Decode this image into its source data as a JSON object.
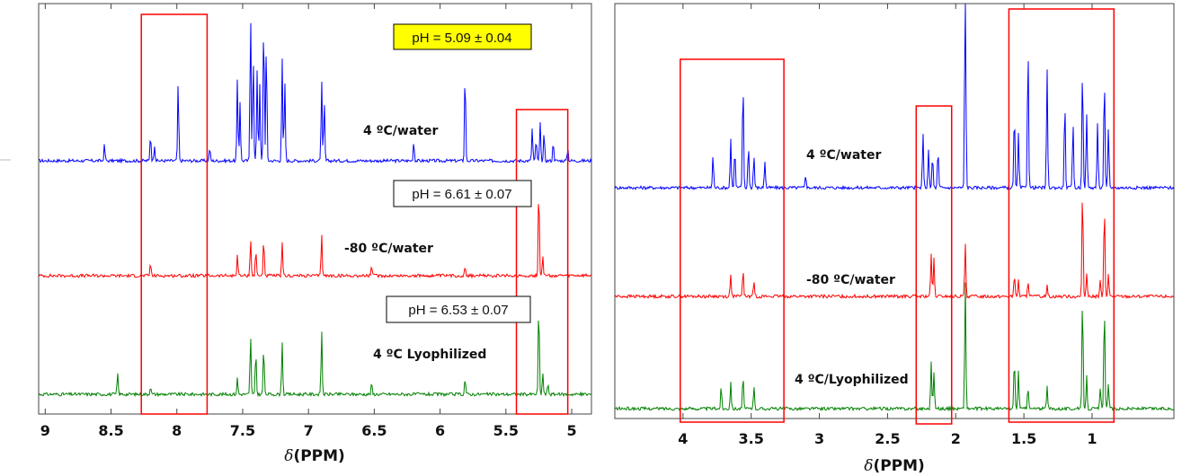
{
  "chart_data": [
    {
      "type": "line",
      "xlabel_symbol": "δ",
      "xlabel_unit": "(PPM)",
      "xlim": [
        9.05,
        4.85
      ],
      "x_reversed": true,
      "xticks": [
        9,
        8.5,
        8,
        7.5,
        7,
        6.5,
        6,
        5.5,
        5
      ],
      "tick_labels": [
        "9",
        "8.5",
        "8",
        "7.5",
        "7",
        "6.5",
        "6",
        "5.5",
        "5"
      ],
      "series": [
        {
          "name": "4 ºC/water",
          "color": "#0000ff",
          "peaks": [
            [
              8.55,
              0.15
            ],
            [
              8.2,
              0.25
            ],
            [
              8.17,
              0.15
            ],
            [
              7.99,
              0.72
            ],
            [
              7.75,
              0.12
            ],
            [
              7.54,
              0.75
            ],
            [
              7.52,
              0.55
            ],
            [
              7.44,
              1.4
            ],
            [
              7.42,
              1.0
            ],
            [
              7.39,
              0.85
            ],
            [
              7.37,
              0.7
            ],
            [
              7.34,
              1.35
            ],
            [
              7.32,
              1.1
            ],
            [
              7.2,
              0.95
            ],
            [
              7.18,
              0.75
            ],
            [
              6.9,
              0.75
            ],
            [
              6.88,
              0.55
            ],
            [
              6.2,
              0.18
            ],
            [
              5.81,
              0.85
            ],
            [
              5.3,
              0.3
            ],
            [
              5.27,
              0.2
            ],
            [
              5.24,
              0.35
            ],
            [
              5.21,
              0.25
            ],
            [
              5.14,
              0.18
            ],
            [
              5.03,
              0.12
            ]
          ]
        },
        {
          "name": "-80 ºC/water",
          "color": "#ff0000",
          "peaks": [
            [
              8.2,
              0.12
            ],
            [
              7.54,
              0.2
            ],
            [
              7.44,
              0.35
            ],
            [
              7.4,
              0.25
            ],
            [
              7.34,
              0.35
            ],
            [
              7.2,
              0.3
            ],
            [
              6.9,
              0.4
            ],
            [
              6.52,
              0.1
            ],
            [
              5.81,
              0.1
            ],
            [
              5.25,
              0.85
            ],
            [
              5.22,
              0.2
            ]
          ]
        },
        {
          "name": "4 ºC Lyophilized",
          "color": "#008000",
          "peaks": [
            [
              8.45,
              0.2
            ],
            [
              8.2,
              0.08
            ],
            [
              7.54,
              0.15
            ],
            [
              7.44,
              0.55
            ],
            [
              7.4,
              0.4
            ],
            [
              7.34,
              0.45
            ],
            [
              7.2,
              0.5
            ],
            [
              6.9,
              0.6
            ],
            [
              6.52,
              0.1
            ],
            [
              5.81,
              0.15
            ],
            [
              5.25,
              0.85
            ],
            [
              5.22,
              0.2
            ],
            [
              5.18,
              0.1
            ]
          ]
        }
      ],
      "annotations": {
        "ph_labels": [
          "pH = 5.09 ± 0.04",
          "pH = 6.61 ± 0.07",
          "pH = 6.53 ±  0.07"
        ],
        "ph_highlight_color": "#ffff00",
        "highlight_region_color": "#ff0000",
        "highlight_regions_ppm": [
          [
            8.27,
            7.77
          ],
          [
            5.42,
            5.03
          ]
        ]
      },
      "grid": false
    },
    {
      "type": "line",
      "xlabel_symbol": "δ",
      "xlabel_unit": "(PPM)",
      "xlim": [
        4.5,
        0.4
      ],
      "x_reversed": true,
      "xticks": [
        4,
        3.5,
        3,
        2.5,
        2,
        1.5,
        1
      ],
      "tick_labels": [
        "4",
        "3.5",
        "3",
        "2.5",
        "2",
        "1.5",
        "1"
      ],
      "series": [
        {
          "name": "4 ºC/water",
          "color": "#0000ff",
          "peaks": [
            [
              3.78,
              0.3
            ],
            [
              3.65,
              0.45
            ],
            [
              3.62,
              0.35
            ],
            [
              3.56,
              1.0
            ],
            [
              3.52,
              0.4
            ],
            [
              3.48,
              0.3
            ],
            [
              3.4,
              0.25
            ],
            [
              3.1,
              0.12
            ],
            [
              2.24,
              0.5
            ],
            [
              2.2,
              0.35
            ],
            [
              2.17,
              0.3
            ],
            [
              2.13,
              0.35
            ],
            [
              1.93,
              2.5
            ],
            [
              1.57,
              0.7
            ],
            [
              1.54,
              0.5
            ],
            [
              1.47,
              1.35
            ],
            [
              1.33,
              1.1
            ],
            [
              1.2,
              0.8
            ],
            [
              1.14,
              0.6
            ],
            [
              1.07,
              1.15
            ],
            [
              1.04,
              0.7
            ],
            [
              0.96,
              0.6
            ],
            [
              0.91,
              1.05
            ],
            [
              0.88,
              0.55
            ]
          ]
        },
        {
          "name": "-80 ºC/water",
          "color": "#ff0000",
          "peaks": [
            [
              3.65,
              0.2
            ],
            [
              3.56,
              0.25
            ],
            [
              3.48,
              0.15
            ],
            [
              2.18,
              0.4
            ],
            [
              2.16,
              0.35
            ],
            [
              1.93,
              0.5
            ],
            [
              1.57,
              0.2
            ],
            [
              1.54,
              0.15
            ],
            [
              1.47,
              0.15
            ],
            [
              1.33,
              0.1
            ],
            [
              1.07,
              1.0
            ],
            [
              1.04,
              0.2
            ],
            [
              0.94,
              0.15
            ],
            [
              0.91,
              0.85
            ],
            [
              0.88,
              0.2
            ]
          ]
        },
        {
          "name": "4 ºC/Lyophilized",
          "color": "#008000",
          "peaks": [
            [
              3.72,
              0.2
            ],
            [
              3.65,
              0.25
            ],
            [
              3.56,
              0.3
            ],
            [
              3.48,
              0.2
            ],
            [
              2.18,
              0.45
            ],
            [
              2.16,
              0.35
            ],
            [
              1.93,
              1.2
            ],
            [
              1.57,
              0.45
            ],
            [
              1.54,
              0.35
            ],
            [
              1.47,
              0.2
            ],
            [
              1.33,
              0.2
            ],
            [
              1.07,
              1.05
            ],
            [
              1.04,
              0.3
            ],
            [
              0.94,
              0.2
            ],
            [
              0.91,
              0.95
            ],
            [
              0.88,
              0.25
            ]
          ]
        }
      ],
      "annotations": {
        "highlight_region_color": "#ff0000",
        "highlight_regions_ppm": [
          [
            4.02,
            3.26
          ],
          [
            2.29,
            2.03
          ],
          [
            1.61,
            0.84
          ]
        ]
      },
      "grid": false
    }
  ]
}
